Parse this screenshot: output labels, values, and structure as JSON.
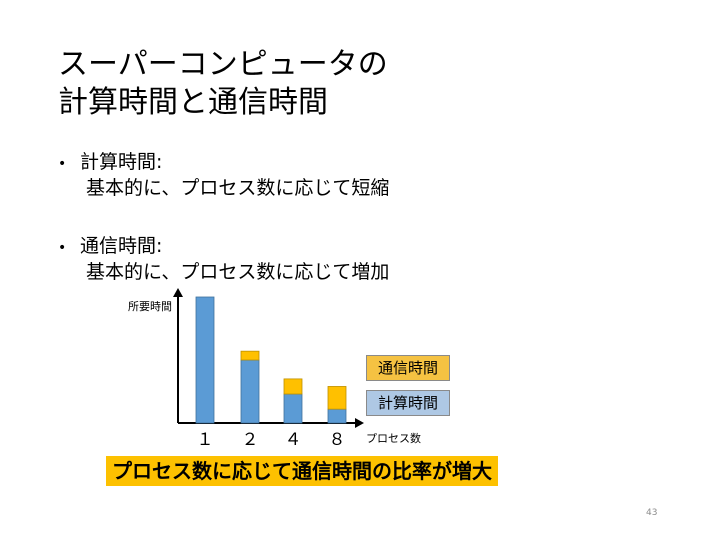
{
  "slide": {
    "title_line1": "スーパーコンピュータの",
    "title_line2": "計算時間と通信時間",
    "bullets": [
      {
        "marker": "•",
        "heading": "計算時間:",
        "text": "基本的に、プロセス数に応じて短縮"
      },
      {
        "marker": "•",
        "heading": "通信時間:",
        "text": "基本的に、プロセス数に応じて増加"
      }
    ],
    "conclusion": "プロセス数に応じて通信時間の比率が増大",
    "page_number": "43"
  },
  "chart_data": {
    "type": "bar",
    "stacked": true,
    "ylabel": "所要時間",
    "xlabel": "プロセス数",
    "categories": [
      "１",
      "２",
      "４",
      "８"
    ],
    "series": [
      {
        "name": "計算時間",
        "color": "#5b9bd5",
        "values": [
          100,
          50,
          23,
          11
        ]
      },
      {
        "name": "通信時間",
        "color": "#ffc000",
        "values": [
          0,
          7,
          12,
          18
        ]
      }
    ],
    "grid": false,
    "legend": "right"
  }
}
